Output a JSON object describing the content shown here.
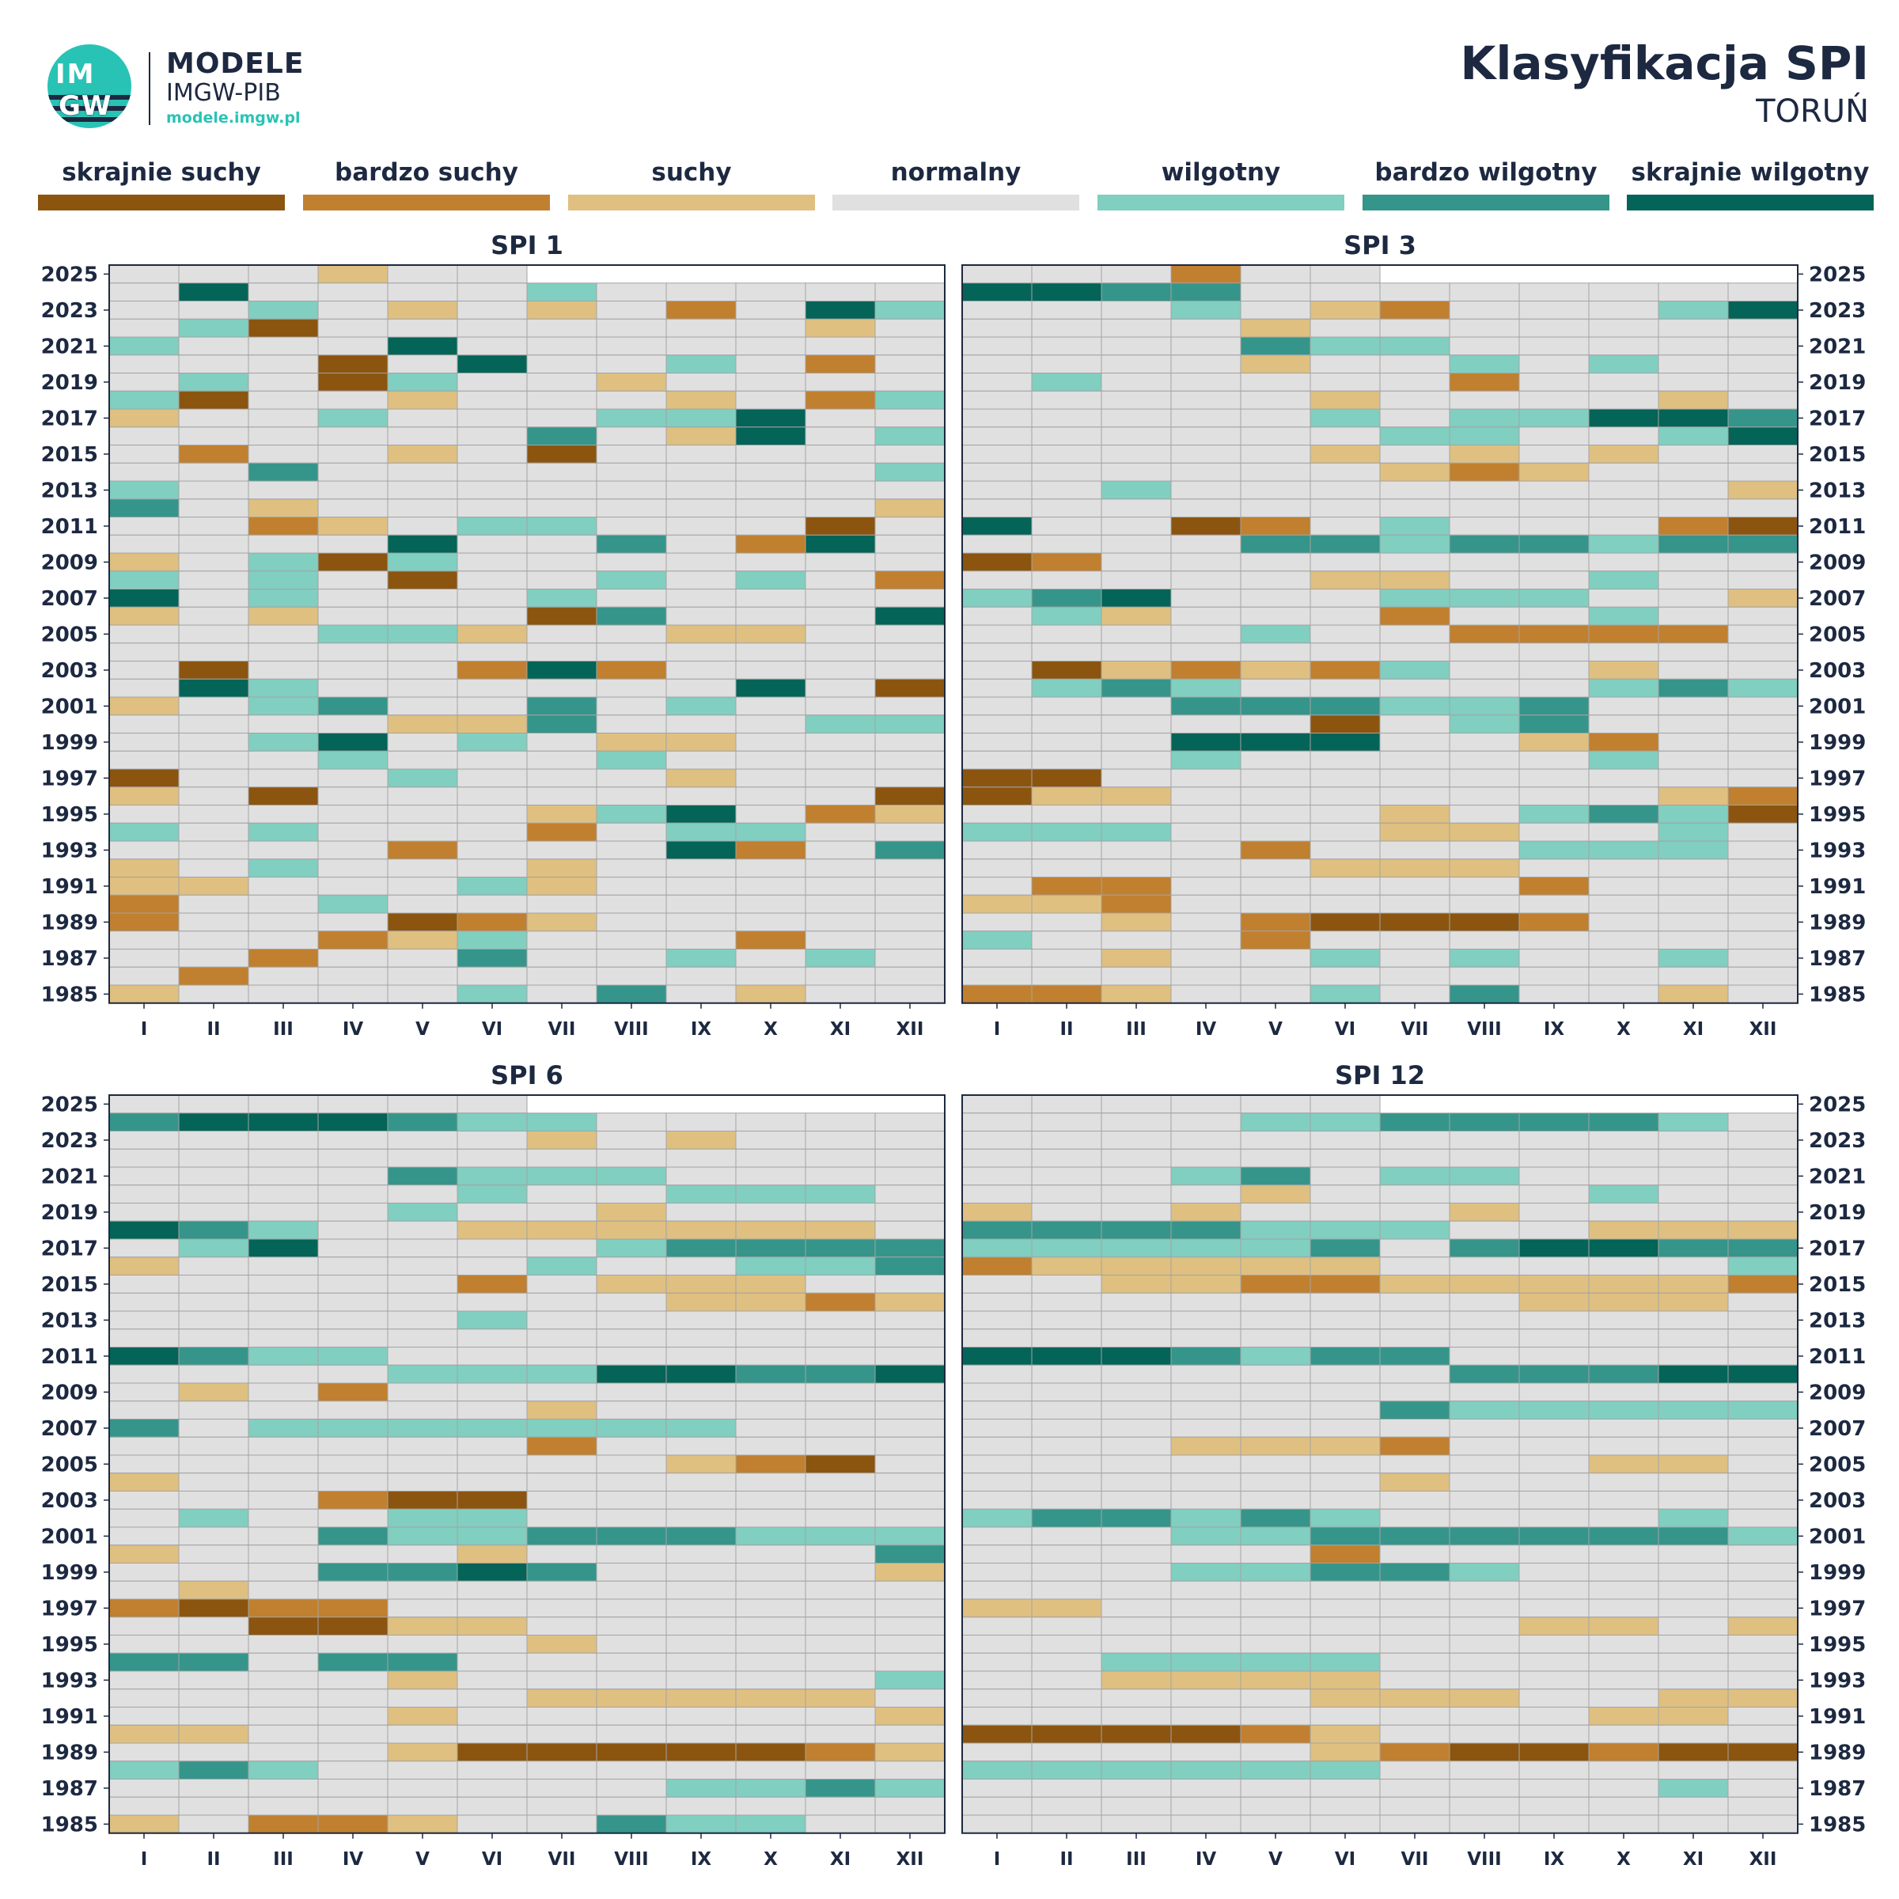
{
  "logo": {
    "circle_top": "IM",
    "circle_bottom": "GW",
    "name": "MODELE",
    "org": "IMGW-PIB",
    "url": "modele.imgw.pl"
  },
  "header": {
    "title": "Klasyfikacja SPI",
    "subtitle": "TORUŃ"
  },
  "legend": [
    {
      "label": "skrajnie suchy",
      "color": "#8b5510"
    },
    {
      "label": "bardzo suchy",
      "color": "#c0802f"
    },
    {
      "label": "suchy",
      "color": "#dfc080"
    },
    {
      "label": "normalny",
      "color": "#e0e0e0"
    },
    {
      "label": "wilgotny",
      "color": "#80cfc0"
    },
    {
      "label": "bardzo wilgotny",
      "color": "#35958a"
    },
    {
      "label": "skrajnie wilgotny",
      "color": "#036457"
    }
  ],
  "chart_data": [
    {
      "type": "heatmap",
      "title": "SPI 1",
      "months": [
        "I",
        "II",
        "III",
        "IV",
        "V",
        "VI",
        "VII",
        "VIII",
        "IX",
        "X",
        "XI",
        "XII"
      ],
      "years_from": 1985,
      "years_to": 2025,
      "year_tick_labels": [
        "2025",
        "2023",
        "2021",
        "2019",
        "2017",
        "2015",
        "2013",
        "2011",
        "2009",
        "2007",
        "2005",
        "2003",
        "2001",
        "1999",
        "1997",
        "1995",
        "1993",
        "1991",
        "1989",
        "1987",
        "1985"
      ],
      "category_codes": {
        "-3": "skrajnie suchy",
        "-2": "bardzo suchy",
        "-1": "suchy",
        "0": "normalny",
        "1": "wilgotny",
        "2": "bardzo wilgotny",
        "3": "skrajnie wilgotny"
      },
      "rows_top_to_bottom": [
        "0,0,0,-1,0,0,X,X,X,X,X,X",
        "0,3,0,0,0,0,1,0,0,0,0,0",
        "0,0,1,0,-1,0,-1,0,-2,0,3,1",
        "0,1,-3,0,0,0,0,0,0,0,-1,0",
        "1,0,0,0,3,0,0,0,0,0,0,0",
        "0,0,0,-3,0,3,0,0,1,0,-2,0",
        "0,1,0,-3,1,0,0,-1,0,0,0,0",
        "1,-3,0,0,-1,0,0,0,-1,0,-2,1",
        "-1,0,0,1,0,0,0,1,1,3,0,0",
        "0,0,0,0,0,0,2,0,-1,3,0,1",
        "0,-2,0,0,-1,0,-3,0,0,0,0,0",
        "0,0,2,0,0,0,0,0,0,0,0,1",
        "1,0,0,0,0,0,0,0,0,0,0,0",
        "2,0,-1,0,0,0,0,0,0,0,0,-1",
        "0,0,-2,-1,0,1,1,0,0,0,-3,0",
        "0,0,0,0,3,0,0,2,0,-2,3,0",
        "-1,0,1,-3,1,0,0,0,0,0,0,0",
        "1,0,1,0,-3,0,0,1,0,1,0,-2",
        "3,0,1,0,0,0,1,0,0,0,0,0",
        "-1,0,-1,0,0,0,-3,2,0,0,0,3",
        "0,0,0,1,1,-1,0,0,-1,-1,0,0",
        "0,0,0,0,0,0,0,0,0,0,0,0",
        "0,-3,0,0,0,-2,3,-2,0,0,0,0",
        "0,3,1,0,0,0,0,0,0,3,0,-3",
        "-1,0,1,2,0,0,2,0,1,0,0,0",
        "0,0,0,0,-1,-1,2,0,0,0,1,1",
        "0,0,1,3,0,1,0,-1,-1,0,0,0",
        "0,0,0,1,0,0,0,1,0,0,0,0",
        "-3,0,0,0,1,0,0,0,-1,0,0,0",
        "-1,0,-3,0,0,0,0,0,0,0,0,-3",
        "0,0,0,0,0,0,-1,1,3,0,-2,-1",
        "1,0,1,0,0,0,-2,0,1,1,0,0",
        "0,0,0,0,-2,0,0,0,3,-2,0,2",
        "-1,0,1,0,0,0,-1,0,0,0,0,0",
        "-1,-1,0,0,0,1,-1,0,0,0,0,0",
        "-2,0,0,1,0,0,0,0,0,0,0,0",
        "-2,0,0,0,-3,-2,-1,0,0,0,0,0",
        "0,0,0,-2,-1,1,0,0,0,-2,0,0",
        "0,0,-2,0,0,2,0,0,1,0,1,0",
        "0,-2,0,0,0,0,0,0,0,0,0,0",
        "-1,0,0,0,0,1,0,2,0,-1,0,0"
      ]
    },
    {
      "type": "heatmap",
      "title": "SPI 3",
      "months": [
        "I",
        "II",
        "III",
        "IV",
        "V",
        "VI",
        "VII",
        "VIII",
        "IX",
        "X",
        "XI",
        "XII"
      ],
      "years_from": 1985,
      "years_to": 2025,
      "rows_top_to_bottom": [
        "0,0,0,-2,0,0,X,X,X,X,X,X",
        "3,3,2,2,0,0,0,0,0,0,0,0",
        "0,0,0,1,0,-1,-2,0,0,0,1,3",
        "0,0,0,0,-1,0,0,0,0,0,0,0",
        "0,0,0,0,2,1,1,0,0,0,0,0",
        "0,0,0,0,-1,0,0,1,0,1,0,0",
        "0,1,0,0,0,0,0,-2,0,0,0,0",
        "0,0,0,0,0,-1,0,0,0,0,-1,0",
        "0,0,0,0,0,1,0,1,1,3,3,2",
        "0,0,0,0,0,0,1,1,0,0,1,3",
        "0,0,0,0,0,-1,0,-1,0,-1,0,0",
        "0,0,0,0,0,0,-1,-2,-1,0,0,0",
        "0,0,1,0,0,0,0,0,0,0,0,-1",
        "0,0,0,0,0,0,0,0,0,0,0,0",
        "3,0,0,-3,-2,0,1,0,0,0,-2,-3",
        "0,0,0,0,2,2,1,2,2,1,2,2",
        "-3,-2,0,0,0,0,0,0,0,0,0,0",
        "0,0,0,0,0,-1,-1,0,0,1,0,0",
        "1,2,3,0,0,0,1,1,1,0,0,-1",
        "0,1,-1,0,0,0,-2,0,0,1,0,0",
        "0,0,0,0,1,0,0,-2,-2,-2,-2,0",
        "0,0,0,0,0,0,0,0,0,0,0,0",
        "0,-3,-1,-2,-1,-2,1,0,0,-1,0,0",
        "0,1,2,1,0,0,0,0,0,1,2,1",
        "0,0,0,2,2,2,1,1,2,0,0,0",
        "0,0,0,0,0,-3,0,1,2,0,0,0",
        "0,0,0,3,3,3,0,0,-1,-2,0,0",
        "0,0,0,1,0,0,0,0,0,1,0,0",
        "-3,-3,0,0,0,0,0,0,0,0,0,0",
        "-3,-1,-1,0,0,0,0,0,0,0,-1,-2",
        "0,0,0,0,0,0,-1,0,1,2,1,-3",
        "1,1,1,0,0,0,-1,-1,0,0,1,0",
        "0,0,0,0,-2,0,0,0,1,1,1,0",
        "0,0,0,0,0,-1,-1,-1,0,0,0,0",
        "0,-2,-2,0,0,0,0,0,-2,0,0,0",
        "-1,-1,-2,0,0,0,0,0,0,0,0,0",
        "0,0,-1,0,-2,-3,-3,-3,-2,0,0,0",
        "1,0,0,0,-2,0,0,0,0,0,0,0",
        "0,0,-1,0,0,1,0,1,0,0,1,0",
        "0,0,0,0,0,0,0,0,0,0,0,0",
        "-2,-2,-1,0,0,1,0,2,0,0,-1,0"
      ]
    },
    {
      "type": "heatmap",
      "title": "SPI 6",
      "months": [
        "I",
        "II",
        "III",
        "IV",
        "V",
        "VI",
        "VII",
        "VIII",
        "IX",
        "X",
        "XI",
        "XII"
      ],
      "years_from": 1985,
      "years_to": 2025,
      "rows_top_to_bottom": [
        "0,0,0,0,0,0,X,X,X,X,X,X",
        "2,3,3,3,2,1,1,0,0,0,0,0",
        "0,0,0,0,0,0,-1,0,-1,0,0,0",
        "0,0,0,0,0,0,0,0,0,0,0,0",
        "0,0,0,0,2,1,1,1,0,0,0,0",
        "0,0,0,0,0,1,0,0,1,1,1,0",
        "0,0,0,0,1,0,0,-1,0,0,0,0",
        "3,2,1,0,0,-1,-1,-1,-1,-1,-1,0",
        "0,1,3,0,0,0,0,1,2,2,2,2",
        "-1,0,0,0,0,0,1,0,0,1,1,2",
        "0,0,0,0,0,-2,0,-1,-1,-1,0,0",
        "0,0,0,0,0,0,0,0,-1,-1,-2,-1",
        "0,0,0,0,0,1,0,0,0,0,0,0",
        "0,0,0,0,0,0,0,0,0,0,0,0",
        "3,2,1,1,0,0,0,0,0,0,0,0",
        "0,0,0,0,1,1,1,3,3,2,2,3",
        "0,-1,0,-2,0,0,0,0,0,0,0,0",
        "0,0,0,0,0,0,-1,0,0,0,0,0",
        "2,0,1,1,1,1,1,1,1,0,0,0",
        "0,0,0,0,0,0,-2,0,0,0,0,0",
        "0,0,0,0,0,0,0,0,-1,-2,-3,0",
        "-1,0,0,0,0,0,0,0,0,0,0,0",
        "0,0,0,-2,-3,-3,0,0,0,0,0,0",
        "0,1,0,0,1,1,0,0,0,0,0,0",
        "0,0,0,2,1,1,2,2,2,1,1,1",
        "-1,0,0,0,0,-1,0,0,0,0,0,2",
        "0,0,0,2,2,3,2,0,0,0,0,-1",
        "0,-1,0,0,0,0,0,0,0,0,0,0",
        "-2,-3,-2,-2,0,0,0,0,0,0,0,0",
        "0,0,-3,-3,-1,-1,0,0,0,0,0,0",
        "0,0,0,0,0,0,-1,0,0,0,0,0",
        "2,2,0,2,2,0,0,0,0,0,0,0",
        "0,0,0,0,-1,0,0,0,0,0,0,1",
        "0,0,0,0,0,0,-1,-1,-1,-1,-1,0",
        "0,0,0,0,-1,0,0,0,0,0,0,-1",
        "-1,-1,0,0,0,0,0,0,0,0,0,0",
        "0,0,0,0,-1,-3,-3,-3,-3,-3,-2,-1",
        "1,2,1,0,0,0,0,0,0,0,0,0",
        "0,0,0,0,0,0,0,0,1,1,2,1",
        "0,0,0,0,0,0,0,0,0,0,0,0",
        "-1,0,-2,-2,-1,0,0,2,1,1,0,0"
      ]
    },
    {
      "type": "heatmap",
      "title": "SPI 12",
      "months": [
        "I",
        "II",
        "III",
        "IV",
        "V",
        "VI",
        "VII",
        "VIII",
        "IX",
        "X",
        "XI",
        "XII"
      ],
      "years_from": 1985,
      "years_to": 2025,
      "rows_top_to_bottom": [
        "0,0,0,0,0,0,X,X,X,X,X,X",
        "0,0,0,0,1,1,2,2,2,2,1,0",
        "0,0,0,0,0,0,0,0,0,0,0,0",
        "0,0,0,0,0,0,0,0,0,0,0,0",
        "0,0,0,1,2,0,1,1,0,0,0,0",
        "0,0,0,0,-1,0,0,0,0,1,0,0",
        "-1,0,0,-1,0,0,0,-1,0,0,0,0",
        "2,2,2,2,1,1,1,0,0,-1,-1,-1",
        "1,1,1,1,1,2,0,2,3,3,2,2",
        "-2,-1,-1,-1,-1,-1,0,0,0,0,0,1",
        "0,0,-1,-1,-2,-2,-1,-1,-1,-1,-1,-2",
        "0,0,0,0,0,0,0,0,-1,-1,-1,0",
        "0,0,0,0,0,0,0,0,0,0,0,0",
        "0,0,0,0,0,0,0,0,0,0,0,0",
        "3,3,3,2,1,2,2,0,0,0,0,0",
        "0,0,0,0,0,0,0,2,2,2,3,3",
        "0,0,0,0,0,0,0,0,0,0,0,0",
        "0,0,0,0,0,0,2,1,1,1,1,1",
        "0,0,0,0,0,0,0,0,0,0,0,0",
        "0,0,0,-1,-1,-1,-2,0,0,0,0,0",
        "0,0,0,0,0,0,0,0,0,-1,-1,0",
        "0,0,0,0,0,0,-1,0,0,0,0,0",
        "0,0,0,0,0,0,0,0,0,0,0,0",
        "1,2,2,1,2,1,0,0,0,0,1,0",
        "0,0,0,1,1,2,2,2,2,2,2,1",
        "0,0,0,0,0,-2,0,0,0,0,0,0",
        "0,0,0,1,1,2,2,1,0,0,0,0",
        "0,0,0,0,0,0,0,0,0,0,0,0",
        "-1,-1,0,0,0,0,0,0,0,0,0,0",
        "0,0,0,0,0,0,0,0,-1,-1,0,-1",
        "0,0,0,0,0,0,0,0,0,0,0,0",
        "0,0,1,1,1,1,0,0,0,0,0,0",
        "0,0,-1,-1,-1,-1,0,0,0,0,0,0",
        "0,0,0,0,0,-1,-1,-1,0,0,-1,-1",
        "0,0,0,0,0,0,0,0,0,-1,-1,0",
        "-3,-3,-3,-3,-2,-1,0,0,0,0,0,0",
        "0,0,0,0,0,-1,-2,-3,-3,-2,-3,-3",
        "1,1,1,1,1,1,0,0,0,0,0,0",
        "0,0,0,0,0,0,0,0,0,0,1,0",
        "0,0,0,0,0,0,0,0,0,0,0,0",
        "0,0,0,0,0,0,0,0,0,0,0,0"
      ]
    }
  ]
}
